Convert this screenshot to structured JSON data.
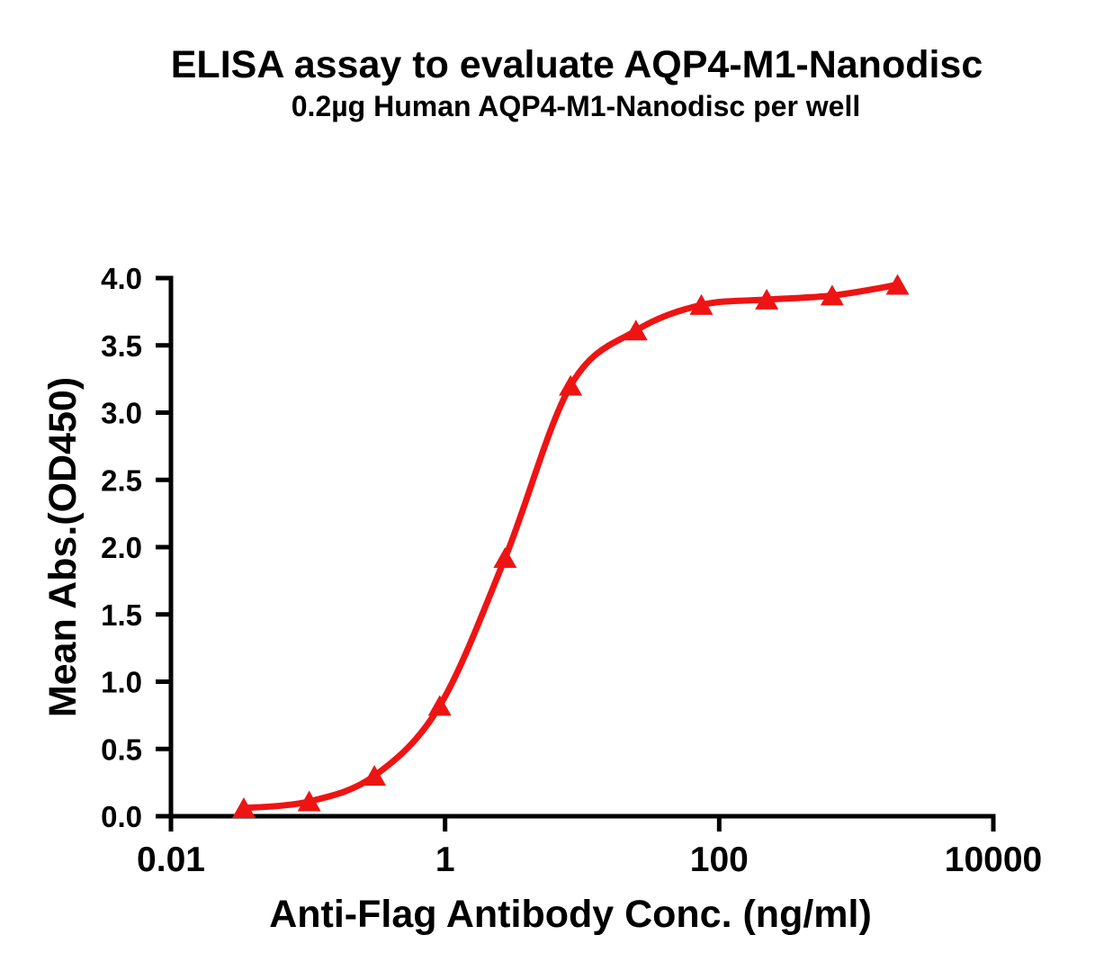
{
  "figure": {
    "background": "#ffffff",
    "text_color": "#000000",
    "axis_color": "#000000"
  },
  "chart_data": {
    "type": "line",
    "title": "ELISA assay to evaluate AQP4-M1-Nanodisc",
    "subtitle": "0.2µg Human AQP4-M1-Nanodisc per well",
    "xlabel": "Anti-Flag Antibody Conc. (ng/ml)",
    "ylabel": "Mean Abs.(OD450)",
    "x_scale": "log10",
    "xlim": [
      0.01,
      10000
    ],
    "ylim": [
      0,
      4
    ],
    "grid": false,
    "legend_position": "none",
    "x_ticks": {
      "values": [
        0.01,
        1,
        100,
        10000
      ],
      "labels": [
        "0.01",
        "1",
        "100",
        "10000"
      ]
    },
    "y_ticks": {
      "values": [
        0,
        0.5,
        1,
        1.5,
        2,
        2.5,
        3,
        3.5,
        4
      ],
      "labels": [
        "0.0",
        "0.5",
        "1.0",
        "1.5",
        "2.0",
        "2.5",
        "3.0",
        "3.5",
        "4.0"
      ]
    },
    "series": [
      {
        "name": "Human AQP4-M1-Nanodisc",
        "color": "#ee1414",
        "marker": "triangle-up",
        "line_style": "sigmoid-fit",
        "x": [
          0.034,
          0.102,
          0.305,
          0.914,
          2.74,
          8.23,
          24.7,
          74.1,
          222.2,
          666.7,
          2000
        ],
        "y": [
          0.06,
          0.11,
          0.3,
          0.82,
          1.92,
          3.2,
          3.61,
          3.8,
          3.84,
          3.87,
          3.95
        ]
      }
    ]
  }
}
